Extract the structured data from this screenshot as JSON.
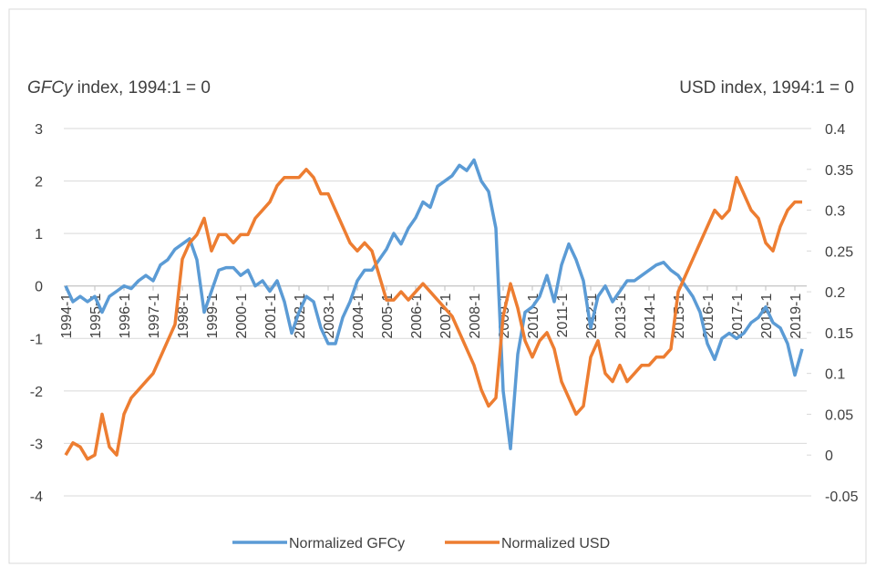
{
  "chart_data": {
    "type": "line",
    "y_label_name": "GFCy",
    "y_label": "index, 1994:1 = 0",
    "y2_label": "USD index, 1994:1 = 0",
    "categories": [
      "1994-1",
      null,
      null,
      null,
      "1995-1",
      null,
      null,
      null,
      "1996-1",
      null,
      null,
      null,
      "1997-1",
      null,
      null,
      null,
      "1998-1",
      null,
      null,
      null,
      "1999-1",
      null,
      null,
      null,
      "2000-1",
      null,
      null,
      null,
      "2001-1",
      null,
      null,
      null,
      "2002-1",
      null,
      null,
      null,
      "2003-1",
      null,
      null,
      null,
      "2004-1",
      null,
      null,
      null,
      "2005-1",
      null,
      null,
      null,
      "2006-1",
      null,
      null,
      null,
      "2007-1",
      null,
      null,
      null,
      "2008-1",
      null,
      null,
      null,
      "2009-1",
      null,
      null,
      null,
      "2010-1",
      null,
      null,
      null,
      "2011-1",
      null,
      null,
      null,
      "2012-1",
      null,
      null,
      null,
      "2013-1",
      null,
      null,
      null,
      "2014-1",
      null,
      null,
      null,
      "2015-1",
      null,
      null,
      null,
      "2016-1",
      null,
      null,
      null,
      "2017-1",
      null,
      null,
      null,
      "2018-1",
      null,
      null,
      null,
      "2019-1",
      null
    ],
    "series": [
      {
        "name": "Normalized GFCy",
        "color": "#5b9bd5",
        "axis": "y",
        "values": [
          0,
          -0.3,
          -0.2,
          -0.3,
          -0.2,
          -0.5,
          -0.2,
          -0.1,
          0,
          -0.05,
          0.1,
          0.2,
          0.1,
          0.4,
          0.5,
          0.7,
          0.8,
          0.9,
          0.5,
          -0.5,
          -0.1,
          0.3,
          0.35,
          0.35,
          0.2,
          0.3,
          0,
          0.1,
          -0.1,
          0.1,
          -0.3,
          -0.9,
          -0.5,
          -0.2,
          -0.3,
          -0.8,
          -1.1,
          -1.1,
          -0.6,
          -0.3,
          0.1,
          0.3,
          0.3,
          0.5,
          0.7,
          1.0,
          0.8,
          1.1,
          1.3,
          1.6,
          1.5,
          1.9,
          2.0,
          2.1,
          2.3,
          2.2,
          2.4,
          2.0,
          1.8,
          1.1,
          -2.0,
          -3.1,
          -1.3,
          -0.5,
          -0.4,
          -0.2,
          0.2,
          -0.3,
          0.4,
          0.8,
          0.5,
          0.1,
          -0.8,
          -0.2,
          0,
          -0.3,
          -0.1,
          0.1,
          0.1,
          0.2,
          0.3,
          0.4,
          0.45,
          0.3,
          0.2,
          0,
          -0.2,
          -0.5,
          -1.1,
          -1.4,
          -1.0,
          -0.9,
          -1.0,
          -0.9,
          -0.7,
          -0.6,
          -0.4,
          -0.7,
          -0.8,
          -1.1,
          -1.7,
          -1.2
        ]
      },
      {
        "name": "Normalized USD",
        "color": "#ed7d31",
        "axis": "y2",
        "values": [
          0,
          0.015,
          0.01,
          -0.005,
          0,
          0.05,
          0.01,
          0,
          0.05,
          0.07,
          0.08,
          0.09,
          0.1,
          0.12,
          0.14,
          0.16,
          0.24,
          0.26,
          0.27,
          0.29,
          0.25,
          0.27,
          0.27,
          0.26,
          0.27,
          0.27,
          0.29,
          0.3,
          0.31,
          0.33,
          0.34,
          0.34,
          0.34,
          0.35,
          0.34,
          0.32,
          0.32,
          0.3,
          0.28,
          0.26,
          0.25,
          0.26,
          0.25,
          0.22,
          0.19,
          0.19,
          0.2,
          0.19,
          0.2,
          0.21,
          0.2,
          0.19,
          0.18,
          0.17,
          0.15,
          0.13,
          0.11,
          0.08,
          0.06,
          0.07,
          0.17,
          0.21,
          0.18,
          0.14,
          0.12,
          0.14,
          0.15,
          0.13,
          0.09,
          0.07,
          0.05,
          0.06,
          0.12,
          0.14,
          0.1,
          0.09,
          0.11,
          0.09,
          0.1,
          0.11,
          0.11,
          0.12,
          0.12,
          0.13,
          0.2,
          0.22,
          0.24,
          0.26,
          0.28,
          0.3,
          0.29,
          0.3,
          0.34,
          0.32,
          0.3,
          0.29,
          0.26,
          0.25,
          0.28,
          0.3,
          0.31,
          0.31
        ]
      }
    ],
    "ylim": [
      -4,
      3
    ],
    "yticks": [
      3,
      2,
      1,
      0,
      -1,
      -2,
      -3,
      -4
    ],
    "y2lim": [
      -0.05,
      0.4
    ],
    "y2ticks": [
      0.4,
      0.35,
      0.3,
      0.25,
      0.2,
      0.15,
      0.1,
      0.05,
      0,
      -0.05
    ],
    "grid": true
  }
}
